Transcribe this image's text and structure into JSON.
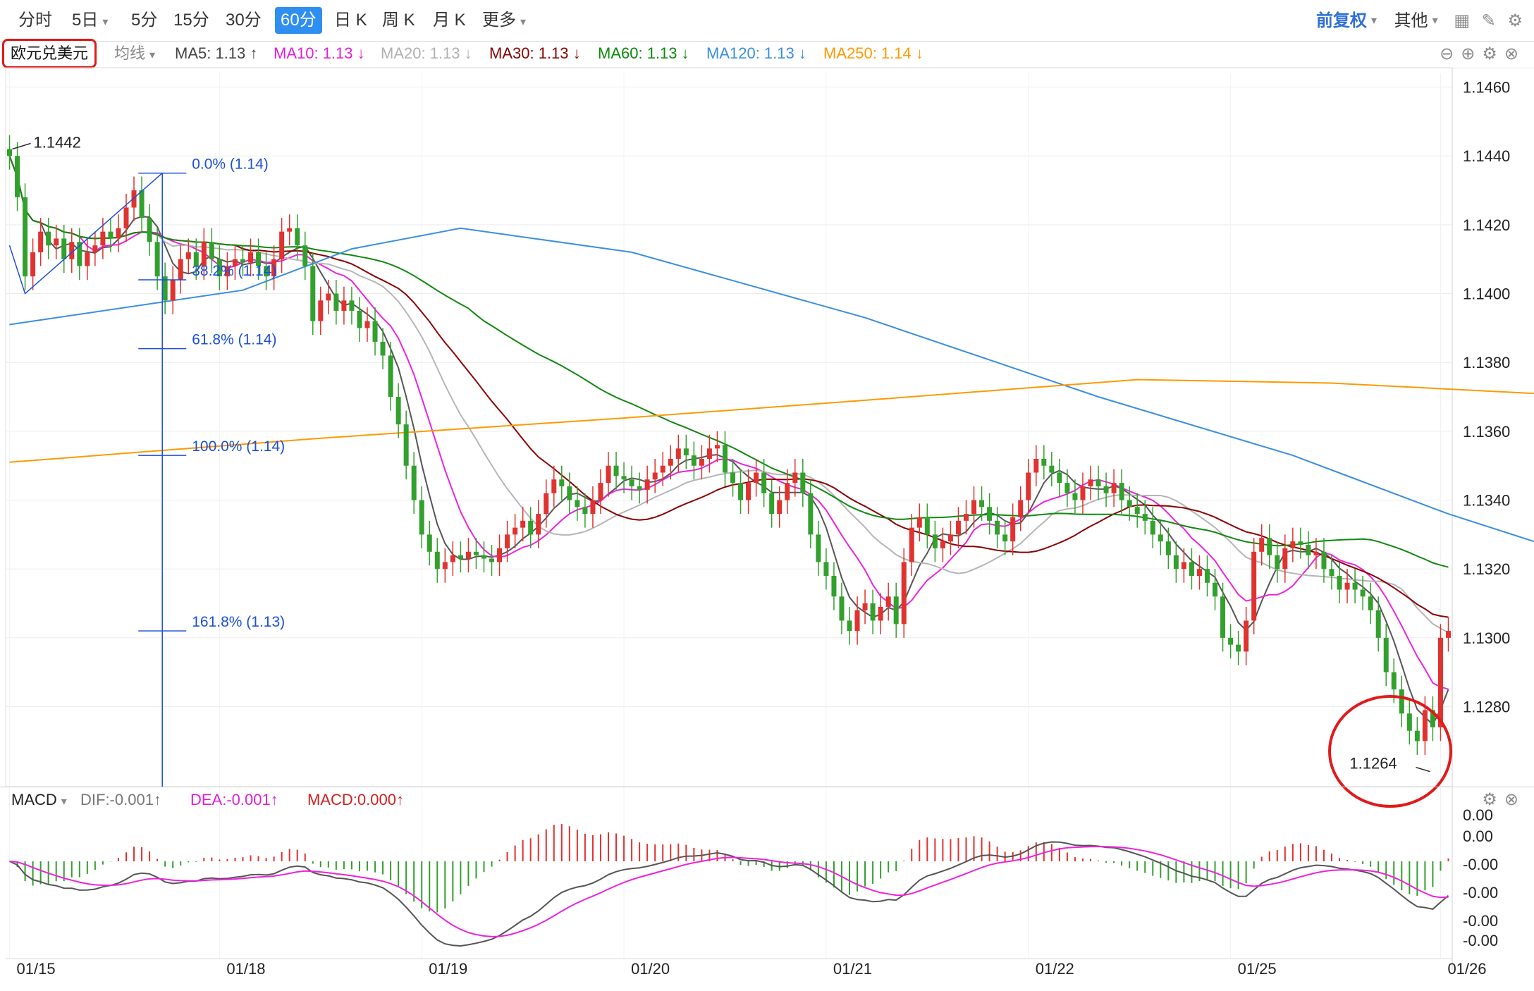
{
  "tabs": [
    {
      "label": "分时",
      "active": false,
      "dropdown": false
    },
    {
      "label": "5日",
      "active": false,
      "dropdown": true
    },
    {
      "label": "5分",
      "active": false,
      "dropdown": false
    },
    {
      "label": "15分",
      "active": false,
      "dropdown": false
    },
    {
      "label": "30分",
      "active": false,
      "dropdown": false
    },
    {
      "label": "60分",
      "active": true,
      "dropdown": false
    },
    {
      "label": "日 K",
      "active": false,
      "dropdown": false
    },
    {
      "label": "周 K",
      "active": false,
      "dropdown": false
    },
    {
      "label": "月 K",
      "active": false,
      "dropdown": false
    },
    {
      "label": "更多",
      "active": false,
      "dropdown": true
    }
  ],
  "right_controls": {
    "adjust": "前复权",
    "other": "其他"
  },
  "symbol": "欧元兑美元",
  "indicator_type": "均线",
  "ma_labels": [
    {
      "text": "MA5: 1.13 ↑",
      "color": "#444444"
    },
    {
      "text": "MA10: 1.13 ↓",
      "color": "#e21ed8"
    },
    {
      "text": "MA20: 1.13 ↓",
      "color": "#b0b0b0"
    },
    {
      "text": "MA30: 1.13 ↓",
      "color": "#8b0000"
    },
    {
      "text": "MA60: 1.13 ↓",
      "color": "#0a8a0a"
    },
    {
      "text": "MA120: 1.13 ↓",
      "color": "#3a8ee0"
    },
    {
      "text": "MA250: 1.14 ↓",
      "color": "#ff9900"
    }
  ],
  "macd_header": {
    "name": "MACD",
    "dif": "DIF:-0.001↑",
    "dea": "DEA:-0.001↑",
    "macd": "MACD:0.000↑"
  },
  "colors": {
    "up": "#e0322f",
    "down": "#32a02d",
    "ma5": "#555555",
    "ma10": "#ee22dd",
    "ma20": "#b5b5b5",
    "ma30": "#8b0000",
    "ma60": "#118811",
    "ma120": "#3a8ee0",
    "ma250": "#ff9900",
    "fib": "#1c4fd8",
    "dif": "#555555",
    "dea": "#ee22dd",
    "highlight": "#e01a1a"
  },
  "chart_data": {
    "type": "candlestick",
    "title": "欧元兑美元 60分",
    "y_ticks": [
      "1.1460",
      "1.1440",
      "1.1420",
      "1.1400",
      "1.1380",
      "1.1360",
      "1.1340",
      "1.1320",
      "1.1300",
      "1.1280"
    ],
    "ylim": [
      1.1258,
      1.1464
    ],
    "x_ticks": [
      "01/15",
      "01/18",
      "01/19",
      "01/20",
      "01/21",
      "01/22",
      "01/25",
      "01/26"
    ],
    "annotations": {
      "high": "1.1442",
      "low": "1.1264"
    },
    "fibonacci": [
      {
        "label": "0.0% (1.14)",
        "price": 1.1435
      },
      {
        "label": "38.2% (1.14)",
        "price": 1.1404
      },
      {
        "label": "61.8% (1.14)",
        "price": 1.1384
      },
      {
        "label": "100.0% (1.14)",
        "price": 1.1353
      },
      {
        "label": "161.8% (1.13)",
        "price": 1.1302
      }
    ],
    "macd_ticks": [
      "0.00",
      "0.00",
      "-0.00",
      "-0.00",
      "-0.00",
      "-0.00"
    ],
    "close": [
      1.144,
      1.1428,
      1.1405,
      1.1412,
      1.1418,
      1.1414,
      1.1416,
      1.141,
      1.1415,
      1.1408,
      1.1412,
      1.1414,
      1.1418,
      1.1416,
      1.1419,
      1.1425,
      1.143,
      1.1422,
      1.1415,
      1.1405,
      1.1398,
      1.1404,
      1.141,
      1.1412,
      1.1408,
      1.1415,
      1.141,
      1.1405,
      1.1408,
      1.141,
      1.1409,
      1.1412,
      1.1408,
      1.1405,
      1.141,
      1.1418,
      1.1419,
      1.1414,
      1.1408,
      1.1392,
      1.1398,
      1.14,
      1.1395,
      1.1398,
      1.1395,
      1.139,
      1.1392,
      1.1386,
      1.1382,
      1.137,
      1.1362,
      1.135,
      1.134,
      1.133,
      1.1325,
      1.132,
      1.1322,
      1.1324,
      1.1323,
      1.1325,
      1.1324,
      1.1323,
      1.1322,
      1.1326,
      1.133,
      1.1332,
      1.1334,
      1.133,
      1.1336,
      1.1342,
      1.1346,
      1.1344,
      1.134,
      1.1338,
      1.1336,
      1.134,
      1.1345,
      1.135,
      1.1347,
      1.1346,
      1.1344,
      1.1343,
      1.1346,
      1.1348,
      1.135,
      1.1352,
      1.1355,
      1.1353,
      1.135,
      1.1352,
      1.1355,
      1.1356,
      1.1348,
      1.1345,
      1.134,
      1.1345,
      1.1348,
      1.1342,
      1.1336,
      1.134,
      1.1345,
      1.1348,
      1.1342,
      1.133,
      1.1322,
      1.1318,
      1.1312,
      1.1305,
      1.1302,
      1.1308,
      1.131,
      1.1305,
      1.1309,
      1.1312,
      1.1304,
      1.1322,
      1.1332,
      1.1335,
      1.133,
      1.1326,
      1.1328,
      1.133,
      1.1334,
      1.1336,
      1.134,
      1.1338,
      1.1334,
      1.133,
      1.1328,
      1.1335,
      1.134,
      1.1348,
      1.1352,
      1.135,
      1.1348,
      1.1345,
      1.1342,
      1.134,
      1.1344,
      1.1346,
      1.1344,
      1.1342,
      1.1345,
      1.134,
      1.1338,
      1.1336,
      1.1334,
      1.133,
      1.1328,
      1.1324,
      1.132,
      1.1322,
      1.1318,
      1.132,
      1.1316,
      1.1312,
      1.13,
      1.1298,
      1.1296,
      1.1305,
      1.1325,
      1.1329,
      1.1324,
      1.132,
      1.1326,
      1.1328,
      1.1327,
      1.1324,
      1.1325,
      1.132,
      1.1318,
      1.1314,
      1.1316,
      1.1314,
      1.1312,
      1.1308,
      1.13,
      1.129,
      1.1285,
      1.1278,
      1.1273,
      1.127,
      1.1279,
      1.1274,
      1.13,
      1.1302
    ],
    "open": [
      1.1442,
      1.144,
      1.1428,
      1.1405,
      1.1412,
      1.1418,
      1.1414,
      1.1416,
      1.141,
      1.1415,
      1.1408,
      1.1412,
      1.1414,
      1.1418,
      1.1416,
      1.1419,
      1.1425,
      1.143,
      1.1422,
      1.1415,
      1.1405,
      1.1398,
      1.1404,
      1.141,
      1.1412,
      1.1408,
      1.1415,
      1.141,
      1.1405,
      1.1408,
      1.141,
      1.1409,
      1.1412,
      1.1408,
      1.1405,
      1.141,
      1.1418,
      1.1419,
      1.1414,
      1.1408,
      1.1392,
      1.1398,
      1.14,
      1.1395,
      1.1398,
      1.1395,
      1.139,
      1.1392,
      1.1386,
      1.1382,
      1.137,
      1.1362,
      1.135,
      1.134,
      1.133,
      1.1325,
      1.132,
      1.1322,
      1.1324,
      1.1323,
      1.1325,
      1.1324,
      1.1323,
      1.1322,
      1.1326,
      1.133,
      1.1332,
      1.1334,
      1.133,
      1.1336,
      1.1342,
      1.1346,
      1.1344,
      1.134,
      1.1338,
      1.1336,
      1.134,
      1.1345,
      1.135,
      1.1347,
      1.1346,
      1.1344,
      1.1343,
      1.1346,
      1.1348,
      1.135,
      1.1352,
      1.1355,
      1.1353,
      1.135,
      1.1352,
      1.1355,
      1.1356,
      1.1348,
      1.1345,
      1.134,
      1.1345,
      1.1348,
      1.1342,
      1.1336,
      1.134,
      1.1345,
      1.1348,
      1.1342,
      1.133,
      1.1322,
      1.1318,
      1.1312,
      1.1305,
      1.1302,
      1.1308,
      1.131,
      1.1305,
      1.1309,
      1.1312,
      1.1304,
      1.1322,
      1.1332,
      1.1335,
      1.133,
      1.1326,
      1.1328,
      1.133,
      1.1334,
      1.1336,
      1.134,
      1.1338,
      1.1334,
      1.133,
      1.1328,
      1.1335,
      1.134,
      1.1348,
      1.1352,
      1.135,
      1.1348,
      1.1345,
      1.1342,
      1.134,
      1.1344,
      1.1346,
      1.1344,
      1.1342,
      1.1345,
      1.134,
      1.1338,
      1.1336,
      1.1334,
      1.133,
      1.1328,
      1.1324,
      1.132,
      1.1322,
      1.1318,
      1.132,
      1.1316,
      1.1312,
      1.13,
      1.1298,
      1.1296,
      1.1305,
      1.1325,
      1.1329,
      1.1324,
      1.132,
      1.1326,
      1.1328,
      1.1327,
      1.1324,
      1.1325,
      1.132,
      1.1318,
      1.1314,
      1.1316,
      1.1314,
      1.1312,
      1.1308,
      1.13,
      1.129,
      1.1285,
      1.1278,
      1.1273,
      1.127,
      1.1279,
      1.1274,
      1.13
    ]
  }
}
